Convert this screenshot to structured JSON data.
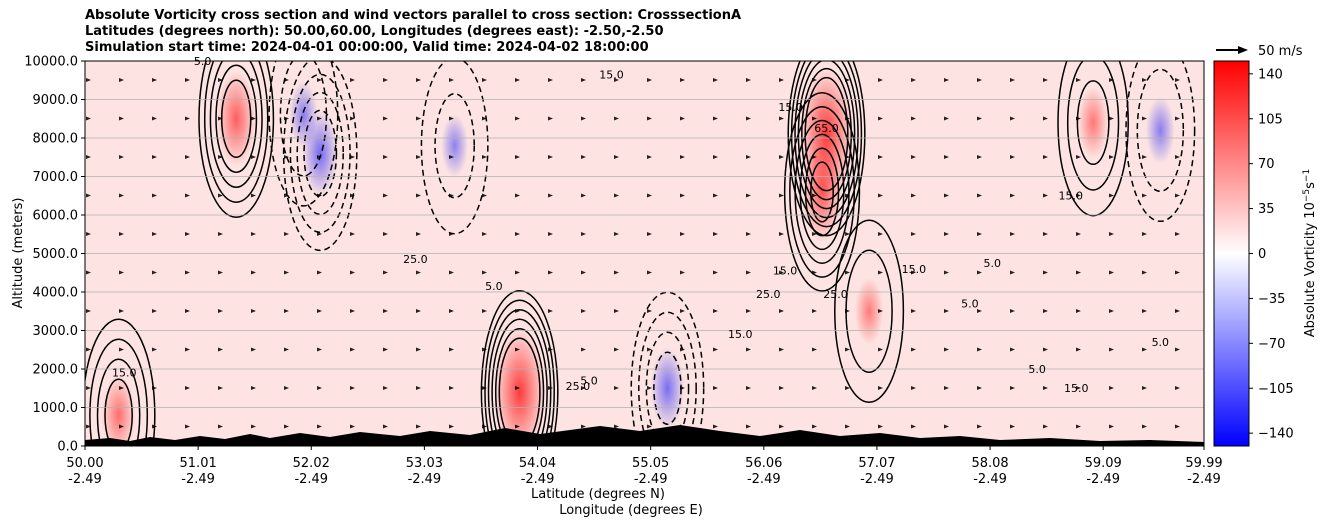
{
  "title_lines": [
    "Absolute Vorticity cross section and wind vectors parallel to cross section: CrosssectionA",
    "Latitudes (degrees north): 50.00,60.00, Longitudes (degrees east): -2.50,-2.50",
    "Simulation start time: 2024-04-01 00:00:00, Valid time: 2024-04-02 18:00:00"
  ],
  "chart_data": {
    "type": "heatmap",
    "title": "Absolute Vorticity cross section and wind vectors parallel to cross section: CrosssectionA",
    "xlabel_lines": [
      "Latitude (degrees N)",
      "Longitude (degrees E)"
    ],
    "ylabel": "Altitude (meters)",
    "xlim": [
      50.0,
      59.99
    ],
    "ylim": [
      0,
      10000
    ],
    "x_ticks": [
      {
        "lat": "50.00",
        "lon": "-2.49"
      },
      {
        "lat": "51.01",
        "lon": "-2.49"
      },
      {
        "lat": "52.02",
        "lon": "-2.49"
      },
      {
        "lat": "53.03",
        "lon": "-2.49"
      },
      {
        "lat": "54.04",
        "lon": "-2.49"
      },
      {
        "lat": "55.05",
        "lon": "-2.49"
      },
      {
        "lat": "56.06",
        "lon": "-2.49"
      },
      {
        "lat": "57.07",
        "lon": "-2.49"
      },
      {
        "lat": "58.08",
        "lon": "-2.49"
      },
      {
        "lat": "59.09",
        "lon": "-2.49"
      },
      {
        "lat": "59.99",
        "lon": "-2.49"
      }
    ],
    "y_ticks": [
      "0.0",
      "1000.0",
      "2000.0",
      "3000.0",
      "4000.0",
      "5000.0",
      "6000.0",
      "7000.0",
      "8000.0",
      "9000.0",
      "10000.0"
    ],
    "grid": true,
    "colorbar": {
      "label": "Absolute Vorticity 10^-5 s^-1",
      "label_base": "Absolute Vorticity 10",
      "label_exp1": "−5",
      "label_mid": "s",
      "label_exp2": "−1",
      "range": [
        -150,
        150
      ],
      "ticks": [
        "140",
        "105",
        "70",
        "35",
        "0",
        "−35",
        "−70",
        "−105",
        "−140"
      ],
      "tick_values": [
        140,
        105,
        70,
        35,
        0,
        -35,
        -70,
        -105,
        -140
      ],
      "colors": [
        "#0000ff",
        "#ffffff",
        "#ff0000"
      ]
    },
    "quiver_key": {
      "label": "50 m/s",
      "speed": 50
    },
    "contour_levels": [
      5.0,
      15.0,
      25.0,
      35.0,
      45.0,
      55.0,
      65.0
    ],
    "contour_labels": [
      {
        "text": "5.0",
        "x": 51.05,
        "y": 9900
      },
      {
        "text": "15.0",
        "x": 54.7,
        "y": 9550
      },
      {
        "text": "5.0",
        "x": 58.5,
        "y": 1900
      },
      {
        "text": "15.0",
        "x": 57.4,
        "y": 4500
      },
      {
        "text": "25.0",
        "x": 56.7,
        "y": 3850
      },
      {
        "text": "15.0",
        "x": 56.25,
        "y": 4450
      },
      {
        "text": "25.0",
        "x": 56.1,
        "y": 3850
      },
      {
        "text": "15.0",
        "x": 55.85,
        "y": 2800
      },
      {
        "text": "5.0",
        "x": 58.1,
        "y": 4650
      },
      {
        "text": "15.0",
        "x": 58.8,
        "y": 6400
      },
      {
        "text": "5.0",
        "x": 53.65,
        "y": 4050
      },
      {
        "text": "25.0",
        "x": 52.95,
        "y": 4750
      },
      {
        "text": "15.0",
        "x": 58.85,
        "y": 1400
      },
      {
        "text": "5.0",
        "x": 54.5,
        "y": 1600
      },
      {
        "text": "65.0",
        "x": 56.62,
        "y": 8150
      },
      {
        "text": "25.0",
        "x": 54.4,
        "y": 1450
      },
      {
        "text": "15.0",
        "x": 50.35,
        "y": 1800
      },
      {
        "text": "5.0",
        "x": 59.6,
        "y": 2600
      },
      {
        "text": "15.0",
        "x": 56.3,
        "y": 8700
      },
      {
        "text": "5.0",
        "x": 57.9,
        "y": 3600
      }
    ],
    "vorticity_features": [
      {
        "x": 56.62,
        "y": 8100,
        "value": 95
      },
      {
        "x": 56.58,
        "y": 6600,
        "value": 60
      },
      {
        "x": 53.88,
        "y": 1400,
        "value": 90
      },
      {
        "x": 51.35,
        "y": 8500,
        "value": 55
      },
      {
        "x": 52.1,
        "y": 7600,
        "value": -45
      },
      {
        "x": 51.95,
        "y": 8600,
        "value": -25
      },
      {
        "x": 55.2,
        "y": 1500,
        "value": -40
      },
      {
        "x": 59.6,
        "y": 8200,
        "value": -25
      },
      {
        "x": 53.3,
        "y": 7800,
        "value": -20
      },
      {
        "x": 50.3,
        "y": 800,
        "value": 40
      },
      {
        "x": 57.0,
        "y": 3500,
        "value": 25
      },
      {
        "x": 59.0,
        "y": 8400,
        "value": 30
      }
    ]
  }
}
